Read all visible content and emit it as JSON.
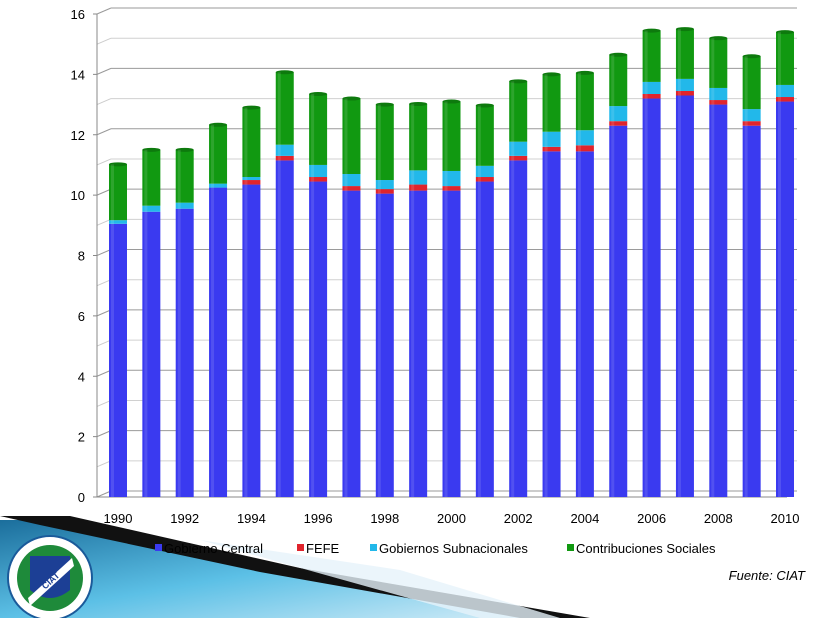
{
  "chart_data": {
    "type": "bar",
    "stacked": true,
    "title": "",
    "xlabel": "",
    "ylabel": "",
    "ylim": [
      0,
      16
    ],
    "yticks": [
      0,
      2,
      4,
      6,
      8,
      10,
      12,
      14,
      16
    ],
    "grid": true,
    "legend_position": "bottom",
    "categories": [
      "1990",
      "1991",
      "1992",
      "1993",
      "1994",
      "1995",
      "1996",
      "1997",
      "1998",
      "1999",
      "2000",
      "2001",
      "2002",
      "2003",
      "2004",
      "2005",
      "2006",
      "2007",
      "2008",
      "2009",
      "2010"
    ],
    "x_tick_labels": [
      "1990",
      "1992",
      "1994",
      "1996",
      "1998",
      "2000",
      "2002",
      "2004",
      "2006",
      "2008",
      "2010"
    ],
    "series": [
      {
        "name": "Gobierno Central",
        "color": "#3a3af0",
        "values": [
          9.05,
          9.45,
          9.55,
          10.25,
          10.35,
          11.15,
          10.45,
          10.15,
          10.05,
          10.15,
          10.15,
          10.45,
          11.15,
          11.45,
          11.45,
          12.3,
          13.2,
          13.3,
          13.0,
          12.3,
          13.1
        ]
      },
      {
        "name": "FEFE",
        "color": "#e0242c",
        "values": [
          0,
          0,
          0,
          0,
          0.15,
          0.15,
          0.15,
          0.15,
          0.15,
          0.2,
          0.15,
          0.15,
          0.15,
          0.15,
          0.2,
          0.15,
          0.15,
          0.15,
          0.15,
          0.15,
          0.15
        ]
      },
      {
        "name": "Gobiernos Subnacionales",
        "color": "#22b8ea",
        "values": [
          0.12,
          0.2,
          0.2,
          0.13,
          0.1,
          0.37,
          0.4,
          0.4,
          0.3,
          0.47,
          0.5,
          0.37,
          0.47,
          0.5,
          0.5,
          0.5,
          0.4,
          0.4,
          0.4,
          0.4,
          0.4
        ]
      },
      {
        "name": "Contribuciones Sociales",
        "color": "#119911",
        "values": [
          1.85,
          1.85,
          1.75,
          1.95,
          2.3,
          2.4,
          2.35,
          2.5,
          2.5,
          2.2,
          2.3,
          2.0,
          2.0,
          1.9,
          1.9,
          1.7,
          1.7,
          1.65,
          1.65,
          1.75,
          1.75
        ]
      }
    ],
    "source_note": "Fuente: CIAT"
  },
  "logo": {
    "text": "CIAT"
  }
}
